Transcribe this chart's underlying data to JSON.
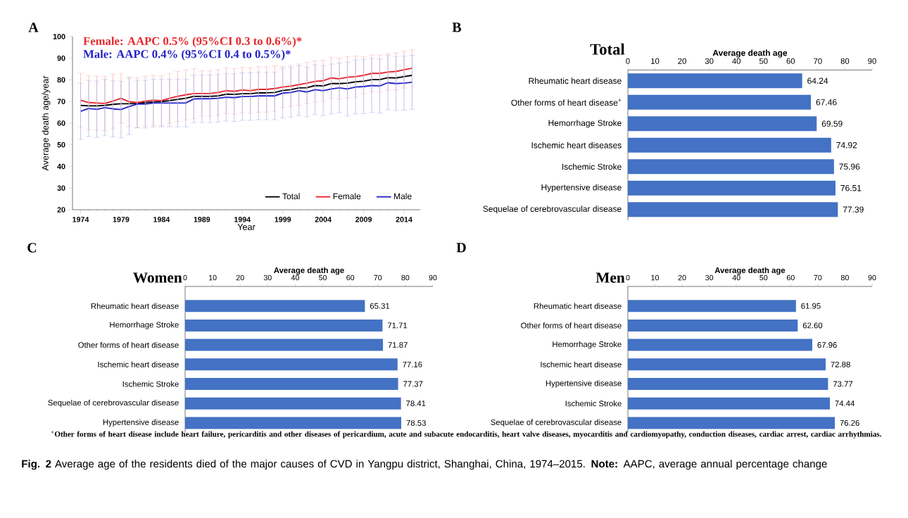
{
  "chart_data": [
    {
      "type": "line",
      "xlabel": "Year",
      "ylabel": "Average death age/year",
      "legend": "bottom right",
      "annotations": [
        "A",
        "Female: AAPC 0.5% (95%CI 0.3 to 0.6%)*",
        "Male: AAPC 0.4% (95%CI 0.4 to 0.5%)*"
      ],
      "x": [
        1974,
        1975,
        1976,
        1977,
        1978,
        1979,
        1980,
        1981,
        1982,
        1983,
        1984,
        1985,
        1986,
        1987,
        1988,
        1989,
        1990,
        1991,
        1992,
        1993,
        1994,
        1995,
        1996,
        1997,
        1998,
        1999,
        2000,
        2001,
        2002,
        2003,
        2004,
        2005,
        2006,
        2007,
        2008,
        2009,
        2010,
        2011,
        2012,
        2013,
        2014,
        2015
      ],
      "xlim": [
        1973,
        2016
      ],
      "xticks": [
        1974,
        1979,
        1984,
        1989,
        1994,
        1999,
        2004,
        2009,
        2014
      ],
      "ylim": [
        20,
        100
      ],
      "yticks": [
        20,
        30,
        40,
        50,
        60,
        70,
        80,
        90,
        100
      ],
      "series": [
        {
          "name": "Total",
          "color": "#000000",
          "values": [
            68.2,
            68.0,
            68.0,
            68.2,
            68.7,
            69.0,
            69.0,
            69.1,
            69.5,
            69.8,
            70.0,
            70.4,
            71.0,
            71.5,
            72.4,
            72.4,
            72.4,
            72.6,
            73.4,
            73.3,
            73.6,
            73.6,
            74.0,
            74.0,
            74.2,
            75.1,
            75.5,
            76.3,
            76.4,
            77.4,
            77.2,
            78.3,
            78.3,
            78.5,
            79.1,
            79.4,
            80.1,
            80.1,
            81.0,
            80.9,
            81.5,
            82.1
          ]
        },
        {
          "name": "Female",
          "color": "#e8262b",
          "values": [
            70.6,
            69.5,
            69.3,
            69.1,
            70.2,
            71.5,
            69.9,
            69.5,
            70.2,
            70.6,
            70.4,
            71.5,
            72.4,
            73.1,
            73.7,
            73.7,
            73.7,
            74.2,
            75.0,
            74.7,
            75.3,
            75.0,
            75.6,
            75.6,
            76.0,
            76.7,
            77.1,
            77.8,
            78.5,
            79.3,
            79.6,
            80.9,
            80.5,
            81.2,
            81.5,
            82.1,
            83.0,
            83.0,
            83.6,
            83.9,
            84.7,
            85.4
          ],
          "errors": [
            12.5,
            12.5,
            12.5,
            12.5,
            12.5,
            11.5,
            11.5,
            11.5,
            11.5,
            11.5,
            11.5,
            11.5,
            11.5,
            11.5,
            11.5,
            10.5,
            10.5,
            10.5,
            10.5,
            10.5,
            10.5,
            10.5,
            10.5,
            10.5,
            10.5,
            9.5,
            9.5,
            9.5,
            9.5,
            9.5,
            9.5,
            9.5,
            9.5,
            9.5,
            9.5,
            8.5,
            8.5,
            8.5,
            8.5,
            8.5,
            8.5,
            8.5
          ]
        },
        {
          "name": "Male",
          "color": "#2424c8",
          "values": [
            65.5,
            66.8,
            66.4,
            67.2,
            66.6,
            66.3,
            67.7,
            68.8,
            68.8,
            69.3,
            69.3,
            69.3,
            69.3,
            69.3,
            71.2,
            71.3,
            71.3,
            71.5,
            72.0,
            71.8,
            72.3,
            72.3,
            72.6,
            72.6,
            72.6,
            73.9,
            74.2,
            75.0,
            74.4,
            75.5,
            75.0,
            75.8,
            76.3,
            75.8,
            76.7,
            76.9,
            77.4,
            77.2,
            78.7,
            78.3,
            78.5,
            78.9
          ],
          "errors": [
            13,
            13,
            13,
            13,
            13,
            13,
            13,
            11,
            11,
            11,
            11,
            11,
            11,
            11,
            11,
            11,
            11,
            11,
            11,
            11,
            11,
            11,
            11,
            11,
            11,
            11.5,
            11.5,
            11.5,
            11.5,
            11.5,
            11.5,
            11.5,
            11.5,
            12.5,
            12.5,
            12.5,
            12.5,
            12.5,
            12.5,
            12.5,
            12.5,
            12.5
          ]
        }
      ]
    },
    {
      "type": "bar",
      "orientation": "horizontal",
      "title": "Total",
      "xlabel": "Average death age",
      "annotations": [
        "B"
      ],
      "categories": [
        "Rheumatic heart disease",
        "Other forms of heart disease$^{+}$",
        "Hemorrhage Stroke",
        "Ischemic heart diseases",
        "Ischemic Stroke",
        "Hypertensive disease",
        "Sequelae of cerebrovascular disease"
      ],
      "values": [
        64.24,
        67.46,
        69.59,
        74.92,
        75.96,
        76.51,
        77.39
      ],
      "color": "#4472c4",
      "value_labels": [
        "64.24",
        "67.46",
        "69.59",
        "74.92",
        "75.96",
        "76.51",
        "77.39"
      ],
      "xlim": [
        0,
        90
      ],
      "xticks": [
        0,
        10,
        20,
        30,
        40,
        50,
        60,
        70,
        80,
        90
      ]
    },
    {
      "type": "bar",
      "orientation": "horizontal",
      "title": "Women",
      "xlabel": "Average death age",
      "annotations": [
        "C"
      ],
      "categories": [
        "Rheumatic heart disease",
        "Hemorrhage Stroke",
        "Other forms of heart disease",
        "Ischemic heart disease",
        "Ischemic Stroke",
        "Sequelae of cerebrovascular disease",
        "Hypertensive disease"
      ],
      "values": [
        65.31,
        71.71,
        71.87,
        77.16,
        77.37,
        78.41,
        78.53
      ],
      "color": "#4472c4",
      "value_labels": [
        "65.31",
        "71.71",
        "71.87",
        "77.16",
        "77.37",
        "78.41",
        "78.53"
      ],
      "xlim": [
        0,
        90
      ],
      "xticks": [
        0,
        10,
        20,
        30,
        40,
        50,
        60,
        70,
        80,
        90
      ]
    },
    {
      "type": "bar",
      "orientation": "horizontal",
      "title": "Men",
      "xlabel": "Average death age",
      "annotations": [
        "D",
        "$^{+}$Other forms of heart disease include heart failure, pericarditis and other diseases of pericardium, acute and subacute endocarditis, heart valve diseases, myocarditis and cardiomyopathy, conduction diseases, cardiac arrest, cardiac arrhythmias.",
        "**Fig. 2** Average age of the residents died of the major causes of CVD in Yangpu district, Shanghai, China, 1974–2015. **Note:** AAPC, average annual percentage change"
      ],
      "categories": [
        "Rheumatic heart disease",
        "Other forms of heart disease",
        "Hemorrhage Stroke",
        "Ischemic heart disease",
        "Hypertensive disease",
        "Ischemic Stroke",
        "Sequelae of cerebrovascular disease"
      ],
      "values": [
        61.95,
        62.6,
        67.96,
        72.88,
        73.77,
        74.44,
        76.26
      ],
      "color": "#4472c4",
      "value_labels": [
        "61.95",
        "62.60",
        "67.96",
        "72.88",
        "73.77",
        "74.44",
        "76.26"
      ],
      "xlim": [
        0,
        90
      ],
      "xticks": [
        0,
        10,
        20,
        30,
        40,
        50,
        60,
        70,
        80,
        90
      ]
    }
  ]
}
